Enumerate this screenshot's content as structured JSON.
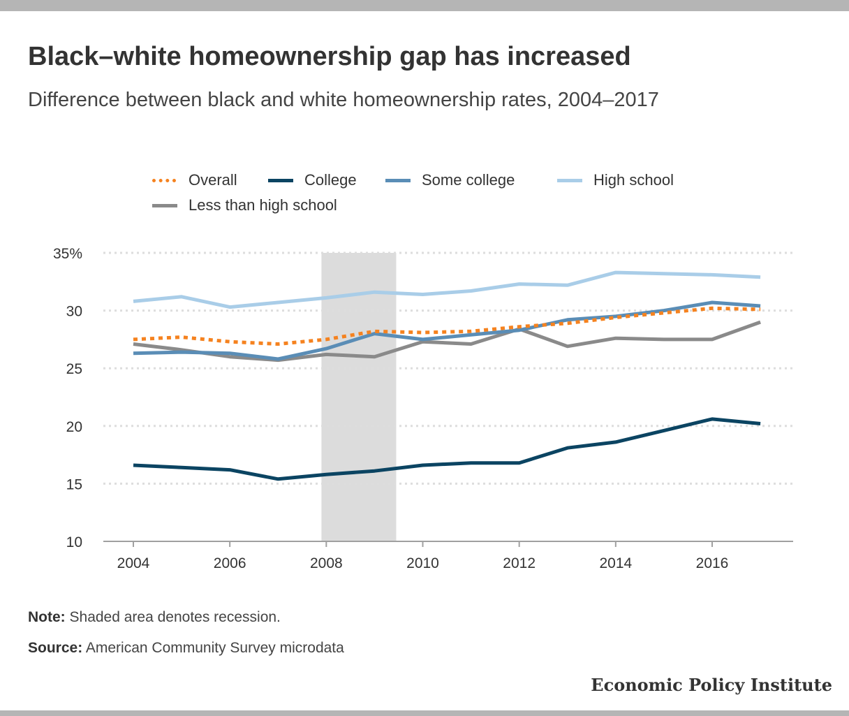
{
  "header": {
    "title": "Black–white homeownership gap has increased",
    "subtitle": "Difference between black and white homeownership rates, 2004–2017"
  },
  "chart_data": {
    "type": "line",
    "x": [
      2004,
      2005,
      2006,
      2007,
      2008,
      2009,
      2010,
      2011,
      2012,
      2013,
      2014,
      2015,
      2016,
      2017
    ],
    "xticks": [
      2004,
      2006,
      2008,
      2010,
      2012,
      2014,
      2016
    ],
    "xtick_labels": [
      "2004",
      "2006",
      "2008",
      "2010",
      "2012",
      "2014",
      "2016"
    ],
    "yticks": [
      10,
      15,
      20,
      25,
      30,
      35
    ],
    "ytick_labels": [
      "10",
      "15",
      "20",
      "25",
      "30",
      "35%"
    ],
    "ylim": [
      10,
      35
    ],
    "xlim": [
      2003.4,
      2017.6
    ],
    "grid": "horizontal dotted",
    "legend_position": "top",
    "recession": {
      "start": 2007.9,
      "end": 2009.45,
      "color": "#dcdcdc"
    },
    "series": [
      {
        "name": "Overall",
        "color": "#f5821f",
        "dash": "dotted",
        "values": [
          27.5,
          27.7,
          27.3,
          27.1,
          27.5,
          28.2,
          28.1,
          28.2,
          28.6,
          28.9,
          29.4,
          29.8,
          30.2,
          30.1
        ]
      },
      {
        "name": "College",
        "color": "#0b4462",
        "dash": "solid",
        "values": [
          16.6,
          16.4,
          16.2,
          15.4,
          15.8,
          16.1,
          16.6,
          16.8,
          16.8,
          18.1,
          18.6,
          19.6,
          20.6,
          20.2
        ]
      },
      {
        "name": "Some college",
        "color": "#5a8db6",
        "dash": "solid",
        "values": [
          26.3,
          26.4,
          26.3,
          25.8,
          26.7,
          28.0,
          27.5,
          27.9,
          28.3,
          29.2,
          29.5,
          30.0,
          30.7,
          30.4
        ]
      },
      {
        "name": "High school",
        "color": "#a9cde8",
        "dash": "solid",
        "values": [
          30.8,
          31.2,
          30.3,
          30.7,
          31.1,
          31.6,
          31.4,
          31.7,
          32.3,
          32.2,
          33.3,
          33.2,
          33.1,
          32.9
        ]
      },
      {
        "name": "Less than high school",
        "color": "#8a8a8a",
        "dash": "solid",
        "values": [
          27.1,
          26.6,
          26.0,
          25.7,
          26.2,
          26.0,
          27.3,
          27.1,
          28.4,
          26.9,
          27.6,
          27.5,
          27.5,
          29.0
        ]
      }
    ]
  },
  "notes": {
    "note_label": "Note:",
    "note_text": "Shaded area denotes recession.",
    "source_label": "Source:",
    "source_text": "American Community Survey microdata"
  },
  "brand": "Economic Policy Institute"
}
